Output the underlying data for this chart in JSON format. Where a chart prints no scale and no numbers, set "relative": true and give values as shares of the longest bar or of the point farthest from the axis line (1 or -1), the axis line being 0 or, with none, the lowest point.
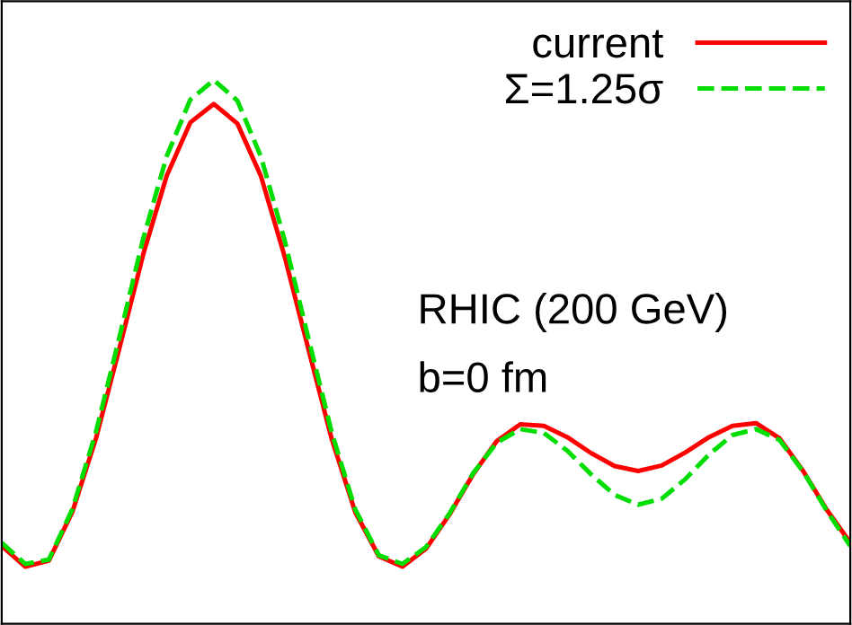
{
  "chart_data": {
    "type": "line",
    "relative": true,
    "categories": [
      null,
      null,
      null,
      null,
      null,
      null,
      null,
      null,
      null,
      null,
      null,
      null,
      null,
      null,
      null,
      null,
      null,
      null,
      null,
      null,
      null,
      null,
      null,
      null,
      null,
      null,
      null,
      null,
      null,
      null,
      null,
      null,
      null,
      null,
      null,
      null,
      null
    ],
    "series": [
      {
        "name": "current",
        "color": "#ff0000",
        "line_style": "solid",
        "values": [
          0.143,
          0.105,
          0.116,
          0.206,
          0.341,
          0.508,
          0.679,
          0.824,
          0.922,
          0.956,
          0.92,
          0.823,
          0.676,
          0.507,
          0.34,
          0.205,
          0.124,
          0.105,
          0.138,
          0.201,
          0.275,
          0.336,
          0.367,
          0.364,
          0.343,
          0.314,
          0.29,
          0.281,
          0.291,
          0.315,
          0.343,
          0.364,
          0.369,
          0.341,
          0.281,
          0.21,
          0.149
        ]
      },
      {
        "name": "Σ=1.25σ",
        "color": "#00dd00",
        "line_style": "dashed",
        "values": [
          0.149,
          0.11,
          0.118,
          0.211,
          0.353,
          0.528,
          0.708,
          0.86,
          0.964,
          1.0,
          0.962,
          0.859,
          0.706,
          0.527,
          0.352,
          0.21,
          0.126,
          0.11,
          0.141,
          0.203,
          0.277,
          0.333,
          0.358,
          0.351,
          0.318,
          0.275,
          0.237,
          0.219,
          0.23,
          0.266,
          0.311,
          0.347,
          0.358,
          0.338,
          0.28,
          0.208,
          0.143
        ]
      }
    ],
    "annotations": [
      "RHIC (200 GeV)",
      "b=0 fm"
    ],
    "legend": "top right",
    "marker": "none"
  }
}
